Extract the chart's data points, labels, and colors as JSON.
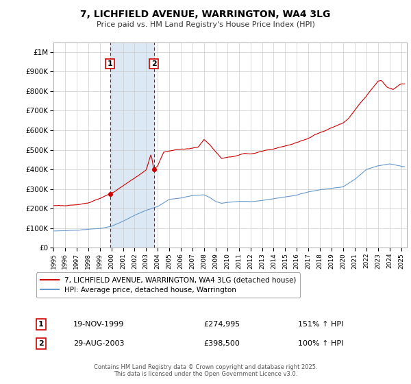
{
  "title": "7, LICHFIELD AVENUE, WARRINGTON, WA4 3LG",
  "subtitle": "Price paid vs. HM Land Registry's House Price Index (HPI)",
  "legend_line1": "7, LICHFIELD AVENUE, WARRINGTON, WA4 3LG (detached house)",
  "legend_line2": "HPI: Average price, detached house, Warrington",
  "footer": "Contains HM Land Registry data © Crown copyright and database right 2025.\nThis data is licensed under the Open Government Licence v3.0.",
  "sale1_x": 1999.88,
  "sale1_y": 274995,
  "sale2_x": 2003.66,
  "sale2_y": 398500,
  "vline1_x": 1999.88,
  "vline2_x": 2003.66,
  "shade_x1": 1999.88,
  "shade_x2": 2003.66,
  "red_color": "#cc0000",
  "blue_color": "#6699cc",
  "shade_color": "#dce9f5",
  "grid_color": "#cccccc",
  "bg_color": "#ffffff",
  "ylim": [
    0,
    1050000
  ],
  "xlim": [
    1995,
    2025.5
  ],
  "yticks": [
    0,
    100000,
    200000,
    300000,
    400000,
    500000,
    600000,
    700000,
    800000,
    900000,
    1000000
  ],
  "ytick_labels": [
    "£0",
    "£100K",
    "£200K",
    "£300K",
    "£400K",
    "£500K",
    "£600K",
    "£700K",
    "£800K",
    "£900K",
    "£1M"
  ],
  "xtick_labels": [
    "1995",
    "1996",
    "1997",
    "1998",
    "1999",
    "2000",
    "2001",
    "2002",
    "2003",
    "2004",
    "2005",
    "2006",
    "2007",
    "2008",
    "2009",
    "2010",
    "2011",
    "2012",
    "2013",
    "2014",
    "2015",
    "2016",
    "2017",
    "2018",
    "2019",
    "2020",
    "2021",
    "2022",
    "2023",
    "2024",
    "2025"
  ]
}
